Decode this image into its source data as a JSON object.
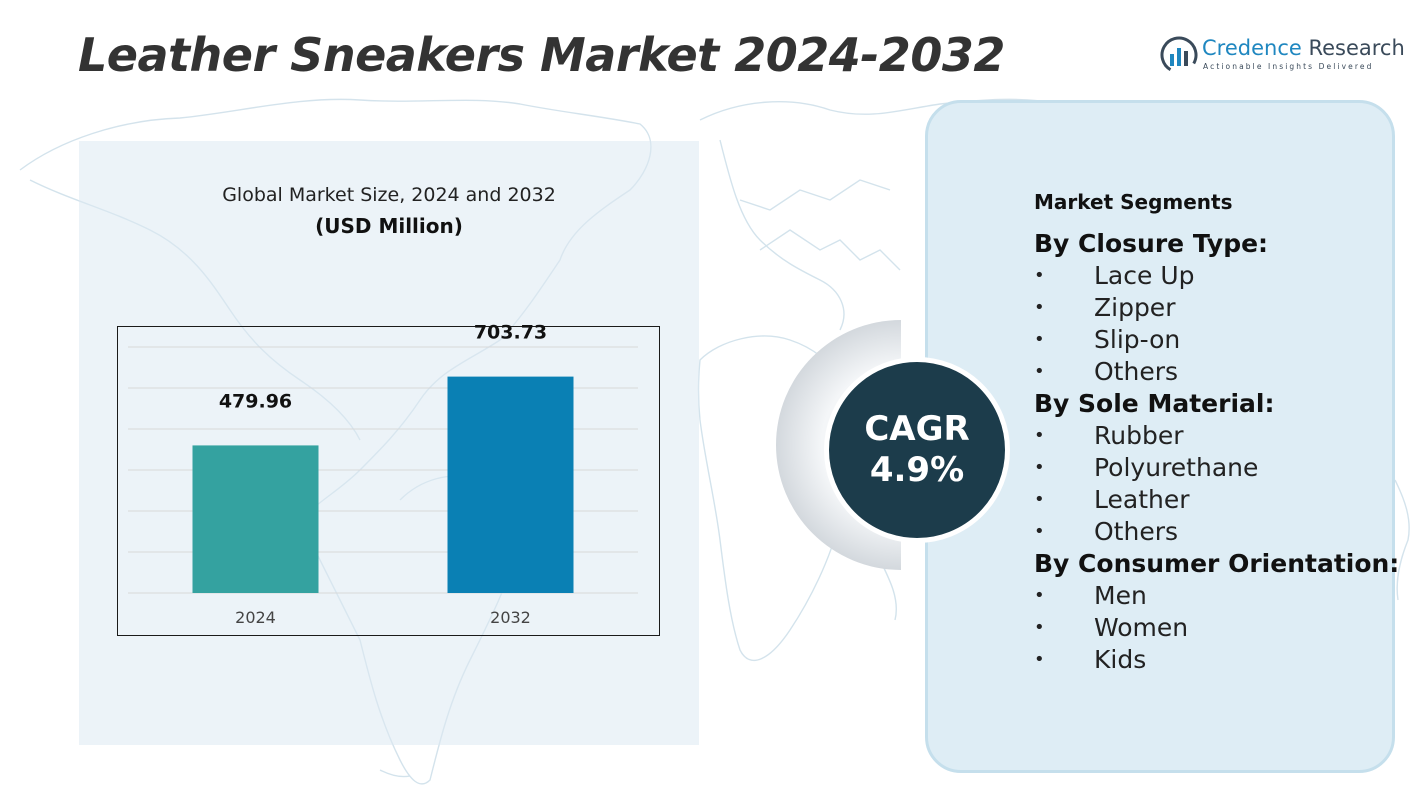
{
  "title": "Leather Sneakers Market 2024-2032",
  "logo": {
    "name_accent": "Credence",
    "name_rest": " Research",
    "tagline": "Actionable Insights Delivered",
    "colors": {
      "accent": "#1f87c0",
      "dark": "#3a4a5a"
    }
  },
  "chart_data": {
    "type": "bar",
    "title": "Global Market Size, 2024 and 2032",
    "subtitle": "(USD Million)",
    "categories": [
      "2024",
      "2032"
    ],
    "values": [
      479.96,
      703.73
    ],
    "data_labels": [
      "479.96",
      "703.73"
    ],
    "colors": [
      "#34a2a0",
      "#0a80b4"
    ],
    "ylim": [
      0,
      800
    ],
    "grid": true,
    "legend": "none"
  },
  "cagr": {
    "label": "CAGR",
    "value": "4.9%",
    "color": "#1c3c4b"
  },
  "segments": {
    "heading": "Market Segments",
    "groups": [
      {
        "title": "By Closure Type:",
        "items": [
          "Lace Up",
          "Zipper",
          "Slip-on",
          "Others"
        ]
      },
      {
        "title": "By Sole Material:",
        "items": [
          "Rubber",
          "Polyurethane",
          "Leather",
          "Others"
        ]
      },
      {
        "title": "By Consumer Orientation:",
        "items": [
          "Men",
          "Women",
          "Kids"
        ]
      }
    ]
  }
}
